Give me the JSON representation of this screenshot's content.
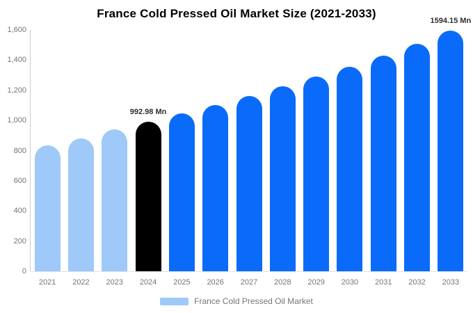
{
  "title": "France Cold Pressed Oil Market Size (2021-2033)",
  "colors": {
    "bar_past": "#9FC9F8",
    "bar_highlight": "#000000",
    "bar_forecast": "#0A6BFA",
    "axis_text": "#757575",
    "annotation_text": "#2e2e2e",
    "axis_line": "#cccccc",
    "background": "#ffffff"
  },
  "y_axis": {
    "tick_labels": [
      "1,600",
      "1,400",
      "1,200",
      "1,000",
      "800",
      "600",
      "400",
      "200",
      "0"
    ],
    "tick_values": [
      1600,
      1400,
      1200,
      1000,
      800,
      600,
      400,
      200,
      0
    ]
  },
  "legend": {
    "label": "France Cold Pressed Oil Market",
    "swatch_color": "#9FC9F8"
  },
  "chart_data": {
    "type": "bar",
    "title": "France Cold Pressed Oil Market Size (2021-2033)",
    "categories": [
      "2021",
      "2022",
      "2023",
      "2024",
      "2025",
      "2026",
      "2027",
      "2028",
      "2029",
      "2030",
      "2031",
      "2032",
      "2033"
    ],
    "values": [
      836,
      882,
      940,
      992.98,
      1046,
      1103,
      1160,
      1225,
      1290,
      1355,
      1428,
      1506,
      1594.15
    ],
    "bar_roles": [
      "past",
      "past",
      "past",
      "highlight",
      "forecast",
      "forecast",
      "forecast",
      "forecast",
      "forecast",
      "forecast",
      "forecast",
      "forecast",
      "forecast"
    ],
    "unit": "Mn",
    "xlabel": "",
    "ylabel": "",
    "ylim": [
      0,
      1600
    ],
    "grid": false,
    "legend_position": "bottom",
    "annotations": [
      {
        "category": "2024",
        "text": "992.98 Mn"
      },
      {
        "category": "2033",
        "text": "1594.15 Mn"
      }
    ]
  }
}
